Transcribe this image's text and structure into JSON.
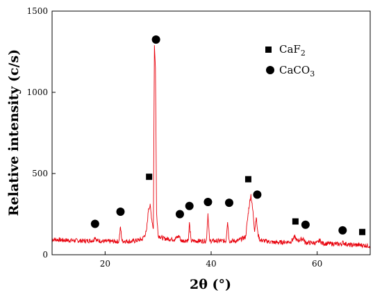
{
  "chart_data": {
    "type": "line",
    "title": "",
    "xlabel": "2θ (°)",
    "ylabel": "Relative intensity (c/s)",
    "xlim": [
      10,
      70
    ],
    "ylim": [
      0,
      1500
    ],
    "x_ticks": [
      20,
      40,
      60
    ],
    "y_ticks": [
      0,
      500,
      1000,
      1500
    ],
    "grid": false,
    "legend_position": "top-right",
    "legend": [
      {
        "marker": "square",
        "label_base": "CaF",
        "label_sub": "2"
      },
      {
        "marker": "circle",
        "label_base": "CaCO",
        "label_sub": "3"
      }
    ],
    "colors": {
      "line": "#e8000b",
      "marker": "#000000",
      "axis": "#000000"
    },
    "series": [
      {
        "points": [
          [
            10,
            95
          ],
          [
            12,
            90
          ],
          [
            14,
            88
          ],
          [
            16,
            85
          ],
          [
            17.8,
            88
          ],
          [
            18.1,
            112
          ],
          [
            18.4,
            88
          ],
          [
            20,
            82
          ],
          [
            22.6,
            82
          ],
          [
            22.9,
            170
          ],
          [
            23.2,
            85
          ],
          [
            25,
            82
          ],
          [
            27,
            95
          ],
          [
            27.8,
            140
          ],
          [
            28.2,
            290
          ],
          [
            28.5,
            300
          ],
          [
            28.8,
            220
          ],
          [
            29.1,
            160
          ],
          [
            29.3,
            1290
          ],
          [
            29.5,
            1150
          ],
          [
            29.7,
            260
          ],
          [
            30,
            120
          ],
          [
            31,
            100
          ],
          [
            33,
            95
          ],
          [
            34,
            115
          ],
          [
            34.3,
            85
          ],
          [
            35.7,
            90
          ],
          [
            35.9,
            195
          ],
          [
            36.2,
            85
          ],
          [
            38,
            85
          ],
          [
            39.1,
            85
          ],
          [
            39.4,
            255
          ],
          [
            39.7,
            85
          ],
          [
            41,
            85
          ],
          [
            42.8,
            85
          ],
          [
            43.1,
            210
          ],
          [
            43.4,
            85
          ],
          [
            45,
            85
          ],
          [
            46.5,
            110
          ],
          [
            47.1,
            285
          ],
          [
            47.5,
            370
          ],
          [
            47.9,
            260
          ],
          [
            48.2,
            150
          ],
          [
            48.5,
            235
          ],
          [
            48.8,
            130
          ],
          [
            49.2,
            90
          ],
          [
            52,
            75
          ],
          [
            55,
            80
          ],
          [
            55.8,
            110
          ],
          [
            56.2,
            85
          ],
          [
            57.4,
            100
          ],
          [
            57.7,
            75
          ],
          [
            60,
            72
          ],
          [
            60.5,
            90
          ],
          [
            61,
            70
          ],
          [
            64.5,
            65
          ],
          [
            64.8,
            75
          ],
          [
            66,
            60
          ],
          [
            68,
            60
          ],
          [
            70,
            55
          ]
        ]
      }
    ],
    "annotations": [
      {
        "marker": "circle",
        "x": 18.1,
        "y": 190
      },
      {
        "marker": "circle",
        "x": 22.9,
        "y": 265
      },
      {
        "marker": "square",
        "x": 28.3,
        "y": 480
      },
      {
        "marker": "circle",
        "x": 29.6,
        "y": 1325
      },
      {
        "marker": "circle",
        "x": 34.1,
        "y": 250
      },
      {
        "marker": "circle",
        "x": 35.9,
        "y": 300
      },
      {
        "marker": "circle",
        "x": 39.4,
        "y": 325
      },
      {
        "marker": "circle",
        "x": 43.4,
        "y": 320
      },
      {
        "marker": "square",
        "x": 47.0,
        "y": 465
      },
      {
        "marker": "circle",
        "x": 48.7,
        "y": 370
      },
      {
        "marker": "square",
        "x": 55.9,
        "y": 205
      },
      {
        "marker": "circle",
        "x": 57.8,
        "y": 185
      },
      {
        "marker": "circle",
        "x": 64.8,
        "y": 150
      },
      {
        "marker": "square",
        "x": 68.5,
        "y": 140
      }
    ]
  }
}
